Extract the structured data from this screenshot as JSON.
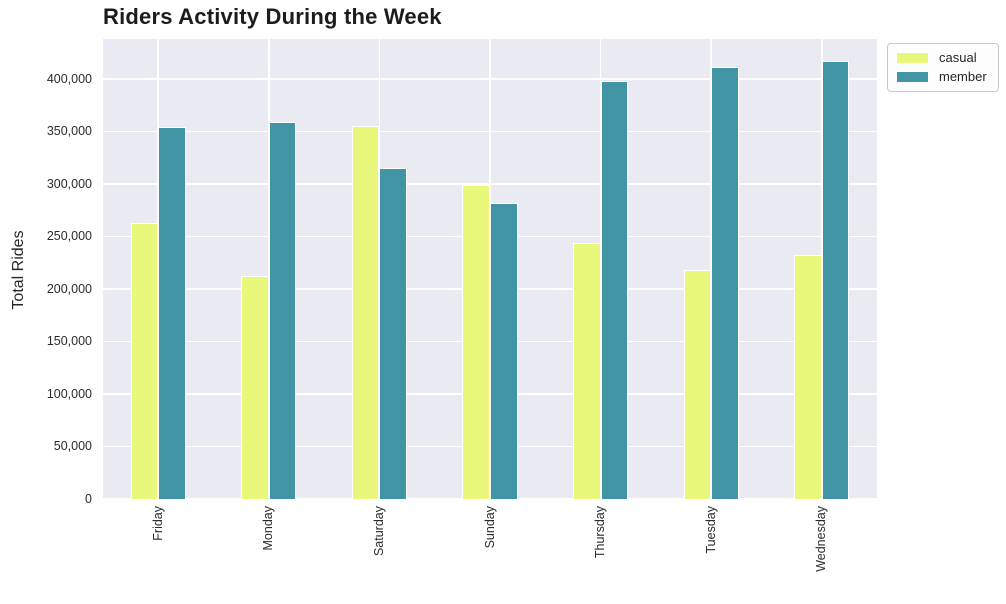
{
  "chart_data": {
    "type": "bar",
    "title": "Riders Activity During the Week",
    "xlabel": "",
    "ylabel": "Total Rides",
    "categories": [
      "Friday",
      "Monday",
      "Saturday",
      "Sunday",
      "Thursday",
      "Tuesday",
      "Wednesday"
    ],
    "series": [
      {
        "name": "casual",
        "color": "#e9f87b",
        "values": [
          263000,
          212000,
          355000,
          299000,
          244000,
          218000,
          232000
        ]
      },
      {
        "name": "member",
        "color": "#4094a3",
        "values": [
          354000,
          359000,
          315000,
          282000,
          398000,
          411000,
          417000
        ]
      }
    ],
    "ylim": [
      0,
      438000
    ],
    "yticks": [
      0,
      50000,
      100000,
      150000,
      200000,
      250000,
      300000,
      350000,
      400000
    ],
    "ytick_labels": [
      "0",
      "50,000",
      "100,000",
      "150,000",
      "200,000",
      "250,000",
      "300,000",
      "350,000",
      "400,000"
    ],
    "grid": true,
    "plot_bg_color": "#eaeaf2",
    "grid_color": "#ffffff",
    "legend": {
      "position": "upper-right-outside",
      "items": [
        "casual",
        "member"
      ]
    }
  }
}
